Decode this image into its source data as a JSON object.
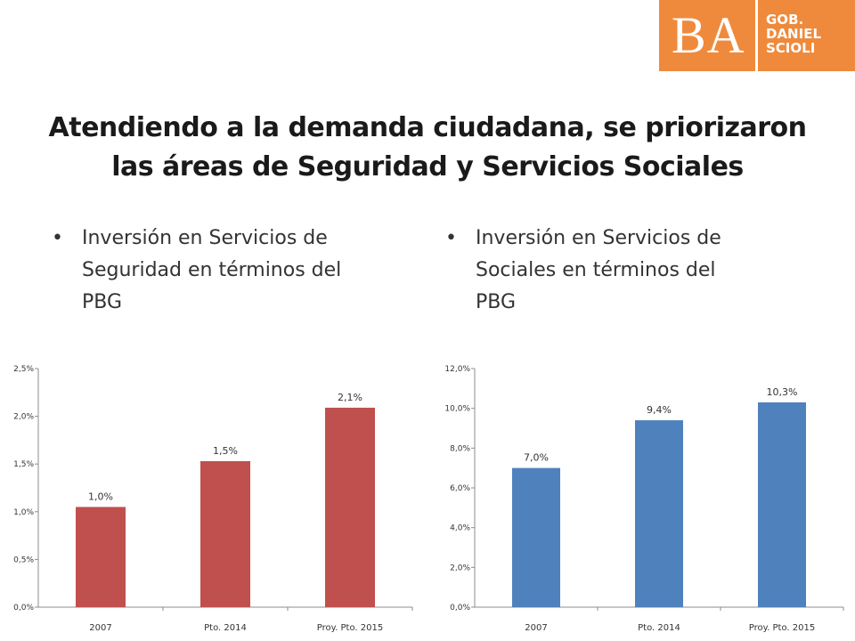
{
  "logo": {
    "ba": "BA",
    "lines": [
      "GOB.",
      "DANIEL",
      "SCIOLI"
    ],
    "color": "#ef8a3c"
  },
  "title": {
    "line1": "Atendiendo a la demanda ciudadana, se priorizaron",
    "line2": "las áreas de Seguridad y Servicios Sociales"
  },
  "bullets": {
    "left": [
      "Inversión en Servicios de",
      "Seguridad en términos del",
      "PBG"
    ],
    "right": [
      "Inversión en Servicios de",
      "Sociales en términos del",
      "PBG"
    ]
  },
  "chart_data": [
    {
      "type": "bar",
      "categories": [
        "2007",
        "Pto. 2014",
        "Proy. Pto. 2015"
      ],
      "values": [
        1.05,
        1.53,
        2.09
      ],
      "data_labels": [
        "1,0%",
        "1,5%",
        "2,1%"
      ],
      "yticks": [
        "0,0%",
        "0,5%",
        "1,0%",
        "1,5%",
        "2,0%",
        "2,5%"
      ],
      "ylim": [
        0,
        2.5
      ],
      "color": "#c0504d",
      "grid": false
    },
    {
      "type": "bar",
      "categories": [
        "2007",
        "Pto. 2014",
        "Proy. Pto. 2015"
      ],
      "values": [
        7.0,
        9.4,
        10.3
      ],
      "data_labels": [
        "7,0%",
        "9,4%",
        "10,3%"
      ],
      "yticks": [
        "0,0%",
        "2,0%",
        "4,0%",
        "6,0%",
        "8,0%",
        "10,0%",
        "12,0%"
      ],
      "ylim": [
        0,
        12
      ],
      "color": "#4f81bd",
      "grid": false
    }
  ]
}
